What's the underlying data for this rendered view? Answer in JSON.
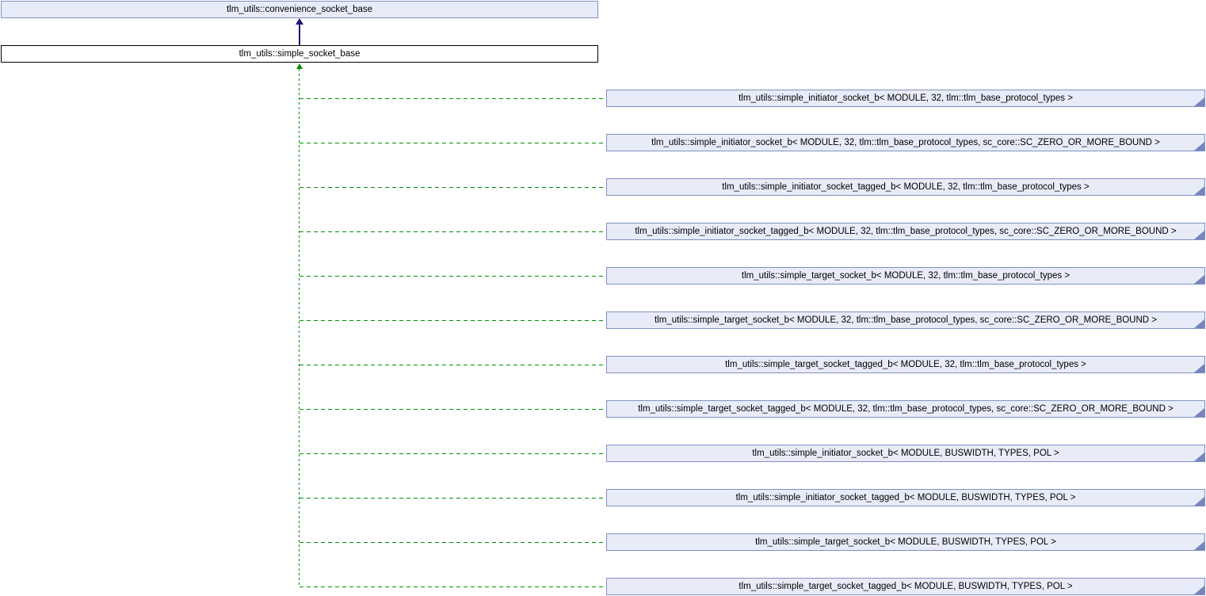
{
  "diagram": {
    "kind": "doxygen-class-inheritance-graph",
    "colors": {
      "node_fill": "#E8ECF8",
      "node_border": "#8090C2",
      "node_fold": "#7486BD",
      "current_fill": "#FFFFFF",
      "current_border": "#000000",
      "edge_public": "#191970",
      "edge_derived": "#009000",
      "bg": "#FFFFFF",
      "text": "#000000"
    },
    "base_class": {
      "label": "tlm_utils::convenience_socket_base"
    },
    "current_class": {
      "label": "tlm_utils::simple_socket_base"
    },
    "derived_classes": [
      {
        "label": "tlm_utils::simple_initiator_socket_b< MODULE, 32, tlm::tlm_base_protocol_types >"
      },
      {
        "label": "tlm_utils::simple_initiator_socket_b< MODULE, 32, tlm::tlm_base_protocol_types, sc_core::SC_ZERO_OR_MORE_BOUND >"
      },
      {
        "label": "tlm_utils::simple_initiator_socket_tagged_b< MODULE, 32, tlm::tlm_base_protocol_types >"
      },
      {
        "label": "tlm_utils::simple_initiator_socket_tagged_b< MODULE, 32, tlm::tlm_base_protocol_types, sc_core::SC_ZERO_OR_MORE_BOUND >"
      },
      {
        "label": "tlm_utils::simple_target_socket_b< MODULE, 32, tlm::tlm_base_protocol_types >"
      },
      {
        "label": "tlm_utils::simple_target_socket_b< MODULE, 32, tlm::tlm_base_protocol_types, sc_core::SC_ZERO_OR_MORE_BOUND >"
      },
      {
        "label": "tlm_utils::simple_target_socket_tagged_b< MODULE, 32, tlm::tlm_base_protocol_types >"
      },
      {
        "label": "tlm_utils::simple_target_socket_tagged_b< MODULE, 32, tlm::tlm_base_protocol_types, sc_core::SC_ZERO_OR_MORE_BOUND >"
      },
      {
        "label": "tlm_utils::simple_initiator_socket_b< MODULE, BUSWIDTH, TYPES, POL >"
      },
      {
        "label": "tlm_utils::simple_initiator_socket_tagged_b< MODULE, BUSWIDTH, TYPES, POL >"
      },
      {
        "label": "tlm_utils::simple_target_socket_b< MODULE, BUSWIDTH, TYPES, POL >"
      },
      {
        "label": "tlm_utils::simple_target_socket_tagged_b< MODULE, BUSWIDTH, TYPES, POL >"
      }
    ]
  }
}
